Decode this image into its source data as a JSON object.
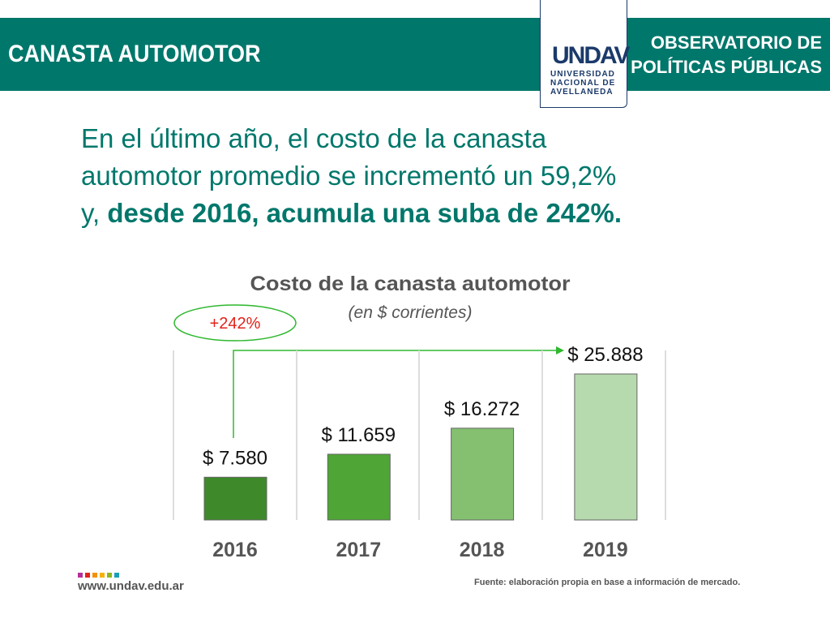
{
  "header": {
    "title": "CANASTA AUTOMOTOR",
    "observatorio_line1": "OBSERVATORIO DE",
    "observatorio_line2": "POLÍTICAS PÚBLICAS",
    "logo_text": "UNDAV",
    "logo_sub1": "UNIVERSIDAD",
    "logo_sub2": "NACIONAL DE",
    "logo_sub3": "AVELLANEDA"
  },
  "headline": {
    "line1": "En el último año, el costo de la canasta",
    "line2": "automotor promedio se incrementó un 59,2%",
    "line3_prefix": "y, ",
    "line3_bold": "desde 2016, acumula una suba de 242%."
  },
  "chart_data": {
    "type": "bar",
    "title": "Costo de la canasta automotor",
    "subtitle": "(en $ corrientes)",
    "categories": [
      "2016",
      "2017",
      "2018",
      "2019"
    ],
    "values": [
      7580,
      11659,
      16272,
      25888
    ],
    "labels": [
      "$ 7.580",
      "$ 11.659",
      "$ 16.272",
      "$ 25.888"
    ],
    "colors": [
      "#3e8a2a",
      "#4fa535",
      "#84c070",
      "#b6d9ae"
    ],
    "annotation": "+242%",
    "ylim": [
      0,
      25888
    ]
  },
  "footer": {
    "url": "www.undav.edu.ar",
    "source": "Fuente: elaboración propia en base a información de mercado.",
    "colors": [
      "#b5309a",
      "#e2231a",
      "#f39200",
      "#f6b100",
      "#8cb61e",
      "#1aa0b5"
    ]
  }
}
